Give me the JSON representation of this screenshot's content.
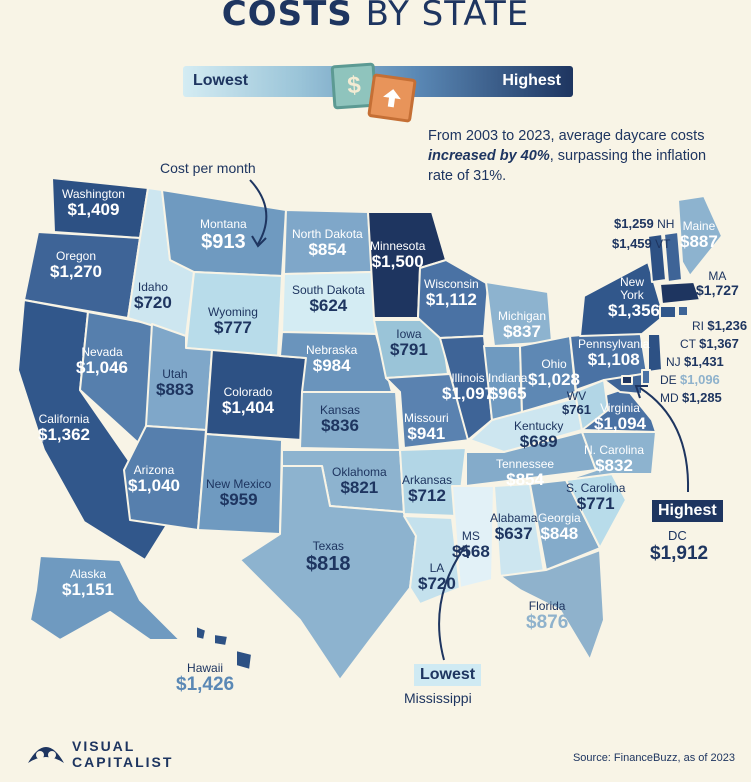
{
  "title": {
    "strong": "COSTS",
    "light": "BY STATE"
  },
  "legend": {
    "low": "Lowest",
    "high": "Highest",
    "dollar_glyph": "$",
    "arrow_icon": "up-arrow-icon"
  },
  "intro": {
    "before": "From 2003 to 2023, average daycare costs ",
    "emph": "increased by 40%",
    "after": ", surpassing the inflation rate of 31%."
  },
  "cost_note": "Cost per month",
  "colors": {
    "lowest": "#d4ecf3",
    "highest": "#1e3560",
    "background": "#f8f4e6",
    "highlight_florida": "#8fb2cc"
  },
  "states": {
    "WA": {
      "name": "Washington",
      "value": "$1,409"
    },
    "OR": {
      "name": "Oregon",
      "value": "$1,270"
    },
    "CA": {
      "name": "California",
      "value": "$1,362"
    },
    "NV": {
      "name": "Nevada",
      "value": "$1,046"
    },
    "ID": {
      "name": "Idaho",
      "value": "$720"
    },
    "MT": {
      "name": "Montana",
      "value": "$913"
    },
    "WY": {
      "name": "Wyoming",
      "value": "$777"
    },
    "UT": {
      "name": "Utah",
      "value": "$883"
    },
    "AZ": {
      "name": "Arizona",
      "value": "$1,040"
    },
    "CO": {
      "name": "Colorado",
      "value": "$1,404"
    },
    "NM": {
      "name": "New Mexico",
      "value": "$959"
    },
    "ND": {
      "name": "North Dakota",
      "value": "$854"
    },
    "SD": {
      "name": "South Dakota",
      "value": "$624"
    },
    "NE": {
      "name": "Nebraska",
      "value": "$984"
    },
    "KS": {
      "name": "Kansas",
      "value": "$836"
    },
    "OK": {
      "name": "Oklahoma",
      "value": "$821"
    },
    "TX": {
      "name": "Texas",
      "value": "$818"
    },
    "MN": {
      "name": "Minnesota",
      "value": "$1,500"
    },
    "IA": {
      "name": "Iowa",
      "value": "$791"
    },
    "MO": {
      "name": "Missouri",
      "value": "$941"
    },
    "AR": {
      "name": "Arkansas",
      "value": "$712"
    },
    "LA": {
      "name": "LA",
      "value": "$720"
    },
    "WI": {
      "name": "Wisconsin",
      "value": "$1,112"
    },
    "IL": {
      "name": "Illinois",
      "value": "$1,097"
    },
    "MI": {
      "name": "Michigan",
      "value": "$837"
    },
    "IN": {
      "name": "Indiana",
      "value": "$965"
    },
    "OH": {
      "name": "Ohio",
      "value": "$1,028"
    },
    "KY": {
      "name": "Kentucky",
      "value": "$689"
    },
    "TN": {
      "name": "Tennessee",
      "value": "$854"
    },
    "MS": {
      "name": "MS",
      "value": "$568"
    },
    "AL": {
      "name": "Alabama",
      "value": "$637"
    },
    "GA": {
      "name": "Georgia",
      "value": "$848"
    },
    "FL": {
      "name": "Florida",
      "value": "$876"
    },
    "SC": {
      "name": "S. Carolina",
      "value": "$771"
    },
    "NC": {
      "name": "N. Carolina",
      "value": "$832"
    },
    "VA": {
      "name": "Virginia",
      "value": "$1,094"
    },
    "WV": {
      "name": "WV",
      "value": "$761"
    },
    "PA": {
      "name": "Pennsylvania",
      "value": "$1,108"
    },
    "NY": {
      "name": "New York",
      "value": "$1,356"
    },
    "ME": {
      "name": "Maine",
      "value": "$887"
    },
    "NH": {
      "name": "NH",
      "value": "$1,259"
    },
    "VT": {
      "name": "VT",
      "value": "$1,459"
    },
    "MA": {
      "name": "MA",
      "value": "$1,727"
    },
    "RI": {
      "name": "RI",
      "value": "$1,236"
    },
    "CT": {
      "name": "CT",
      "value": "$1,367"
    },
    "NJ": {
      "name": "NJ",
      "value": "$1,431"
    },
    "DE": {
      "name": "DE",
      "value": "$1,096"
    },
    "MD": {
      "name": "MD",
      "value": "$1,285"
    },
    "AK": {
      "name": "Alaska",
      "value": "$1,151"
    },
    "HI": {
      "name": "Hawaii",
      "value": "$1,426"
    }
  },
  "highest": {
    "tag": "Highest",
    "name": "DC",
    "value": "$1,912"
  },
  "lowest": {
    "tag": "Lowest",
    "name": "Mississippi"
  },
  "brand": {
    "line1": "VISUAL",
    "line2": "CAPITALIST"
  },
  "source": "Source: FinanceBuzz, as of 2023"
}
